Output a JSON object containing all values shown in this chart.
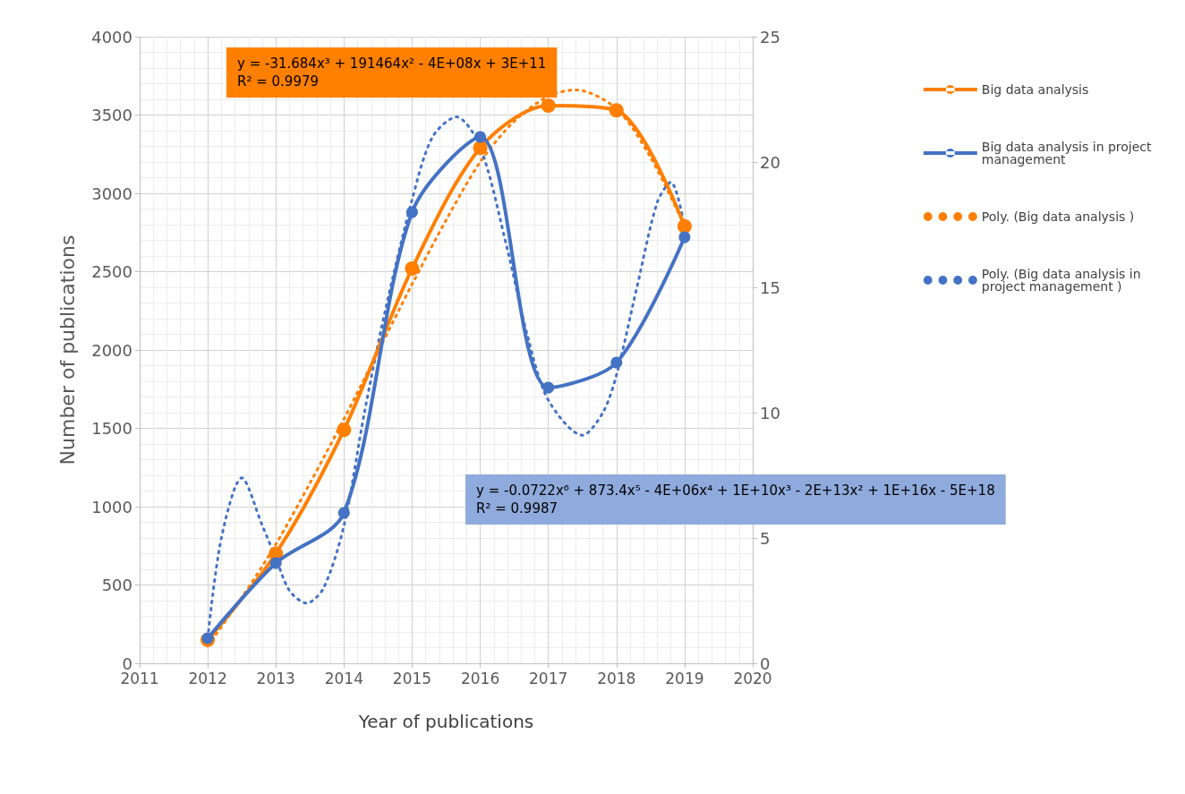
{
  "chart_data": {
    "type": "line",
    "xlabel": "Year of publications",
    "ylabel": "Number of publications",
    "xlim": [
      2011,
      2020
    ],
    "xticks": [
      2011,
      2012,
      2013,
      2014,
      2015,
      2016,
      2017,
      2018,
      2019,
      2020
    ],
    "ylim": [
      0,
      4000
    ],
    "yticks": [
      0,
      500,
      1000,
      1500,
      2000,
      2500,
      3000,
      3500,
      4000
    ],
    "y2lim": [
      0,
      25
    ],
    "y2ticks": [
      0,
      5,
      10,
      15,
      20,
      25
    ],
    "grid": true,
    "legend": "right",
    "series": [
      {
        "name": "Big data analysis",
        "color": "#ff7f00",
        "marker": "circle",
        "line_style": "solid",
        "x": [
          2012,
          2013,
          2014,
          2015,
          2016,
          2017,
          2018,
          2019
        ],
        "values": [
          150,
          700,
          1490,
          2520,
          3290,
          3560,
          3530,
          2790
        ]
      },
      {
        "name": "Big data analysis in project management",
        "color": "#4472c4",
        "marker": "circle",
        "line_style": "solid",
        "axis": "y2",
        "x": [
          2012,
          2013,
          2014,
          2015,
          2016,
          2017,
          2018,
          2019
        ],
        "values": [
          1,
          4,
          6,
          18,
          21,
          11,
          12,
          17
        ]
      },
      {
        "name": "Poly. (Big data analysis )",
        "color": "#ff7f00",
        "marker": "none",
        "line_style": "dotted",
        "x": [
          2012,
          2012.5,
          2013,
          2013.5,
          2014,
          2014.5,
          2015,
          2015.5,
          2016,
          2016.5,
          2017,
          2017.4,
          2018,
          2018.5,
          2019
        ],
        "values": [
          110,
          420,
          760,
          1150,
          1560,
          1990,
          2420,
          2830,
          3200,
          3460,
          3620,
          3660,
          3540,
          3230,
          2790
        ]
      },
      {
        "name": "Poly. (Big data analysis in project management )",
        "color": "#4472c4",
        "marker": "none",
        "line_style": "dotted",
        "axis": "y2",
        "x": [
          2012,
          2012.2,
          2012.5,
          2012.8,
          2013,
          2013.2,
          2013.45,
          2013.7,
          2014,
          2014.3,
          2014.6,
          2015,
          2015.3,
          2015.65,
          2016,
          2016.4,
          2016.7,
          2017,
          2017.5,
          2017.8,
          2018,
          2018.3,
          2018.6,
          2018.8,
          2019
        ],
        "values": [
          1,
          5,
          7.4,
          5.5,
          4.2,
          2.9,
          2.4,
          3,
          5.5,
          10,
          14,
          18.5,
          21,
          21.8,
          20.6,
          16.5,
          13,
          10.5,
          9.1,
          10,
          11.5,
          15,
          18.4,
          19.2,
          17.4
        ]
      }
    ],
    "annotations": [
      "y = -31.684x³ + 191464x² - 4E+08x + 3E+11\nR² = 0.9979",
      "y = -0.0722x⁶ + 873.4x⁵ - 4E+06x⁴ + 1E+10x³ - 2E+13x² + 1E+16x - 5E+18\nR² = 0.9987"
    ]
  }
}
